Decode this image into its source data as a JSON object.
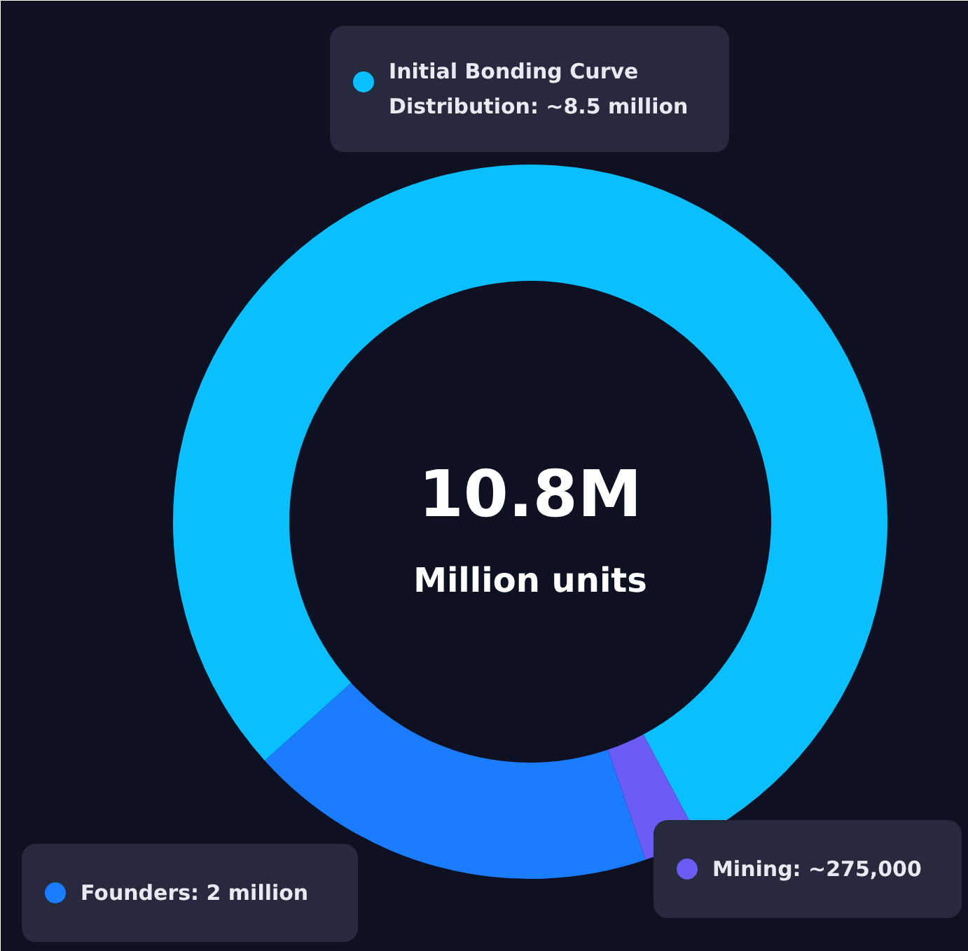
{
  "chart_data": {
    "type": "donut",
    "categories": [
      "Initial Bonding Curve Distribution",
      "Founders",
      "Mining"
    ],
    "values": [
      8500000,
      2000000,
      275000
    ],
    "colors": [
      "#0abfff",
      "#1a7cff",
      "#6a5cf5"
    ],
    "value_labels": [
      "~8.5 million",
      "2 million",
      "~275,000"
    ],
    "annotations": [
      "10.8M",
      "Million units"
    ],
    "legend": "top left"
  }
}
